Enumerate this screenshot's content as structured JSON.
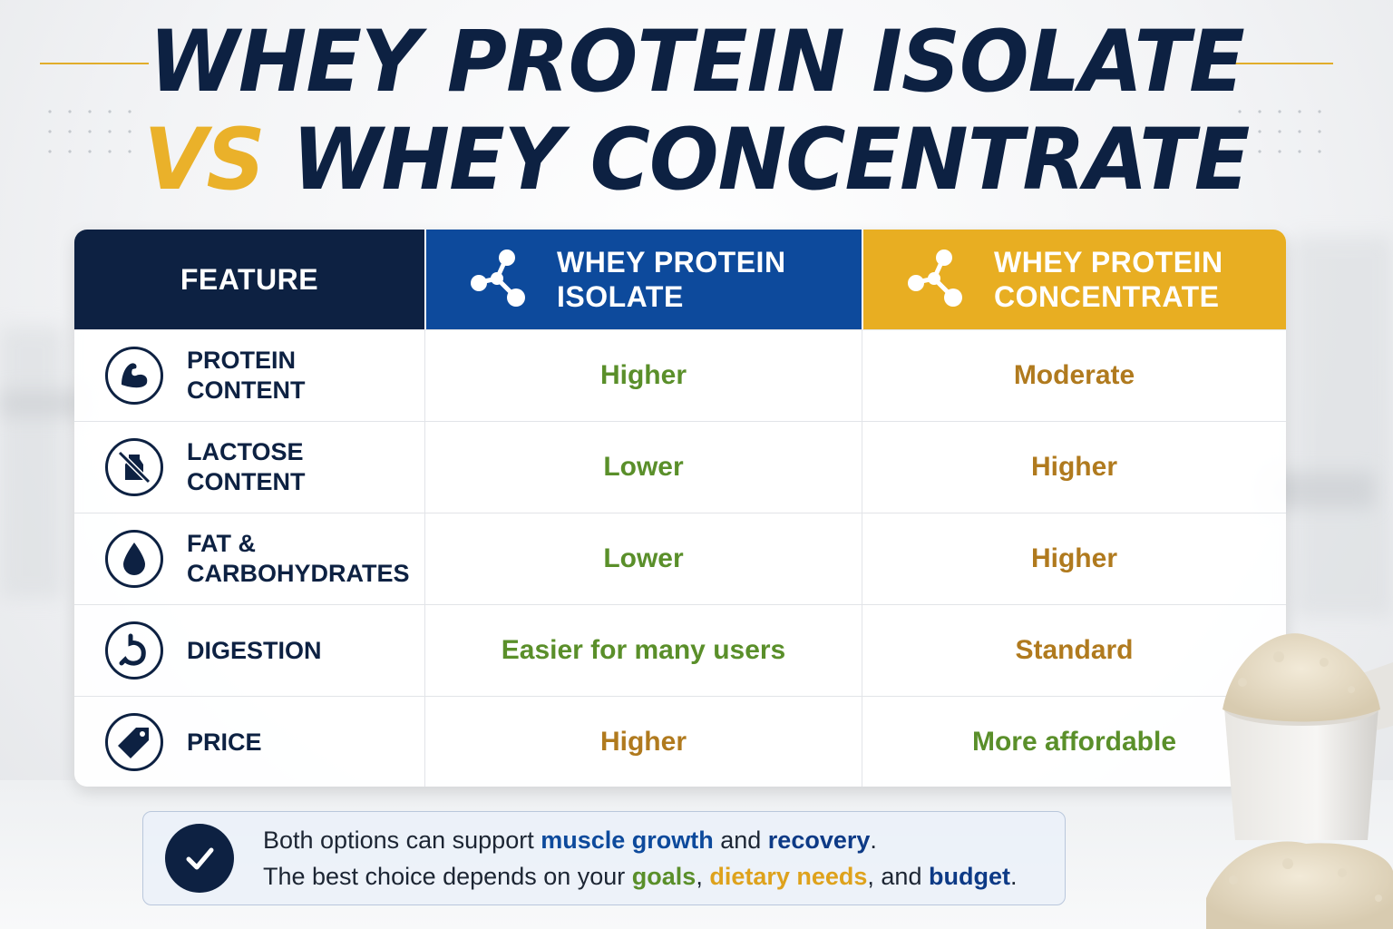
{
  "title": {
    "line1": "WHEY PROTEIN ISOLATE",
    "vs": "VS",
    "line2": "WHEY CONCENTRATE"
  },
  "table": {
    "headers": {
      "feature": "FEATURE",
      "isolate_line1": "WHEY PROTEIN",
      "isolate_line2": "ISOLATE",
      "concentrate_line1": "WHEY PROTEIN",
      "concentrate_line2": "CONCENTRATE"
    },
    "rows": [
      {
        "feature": "PROTEIN CONTENT",
        "icon": "bicep-icon",
        "isolate": "Higher",
        "concentrate": "Moderate"
      },
      {
        "feature": "LACTOSE CONTENT",
        "icon": "no-milk-icon",
        "isolate": "Lower",
        "concentrate": "Higher"
      },
      {
        "feature_line1": "FAT &",
        "feature_line2": "CARBOHYDRATES",
        "icon": "droplet-icon",
        "isolate": "Lower",
        "concentrate": "Higher"
      },
      {
        "feature": "DIGESTION",
        "icon": "stomach-icon",
        "isolate": "Easier for many users",
        "concentrate": "Standard"
      },
      {
        "feature": "PRICE",
        "icon": "price-tag-icon",
        "isolate": "Higher",
        "concentrate": "More affordable"
      }
    ]
  },
  "note": {
    "line1_a": "Both options can support ",
    "line1_b": "muscle growth",
    "line1_c": " and ",
    "line1_d": "recovery",
    "line1_e": ".",
    "line2_a": "The best choice depends on your ",
    "line2_b": "goals",
    "line2_c": ", ",
    "line2_d": "dietary needs",
    "line2_e": ", and ",
    "line2_f": "budget",
    "line2_g": "."
  },
  "colors": {
    "navy": "#0d2142",
    "blue": "#0d4a9c",
    "gold": "#e8ae22",
    "green": "#5a8f2a"
  }
}
